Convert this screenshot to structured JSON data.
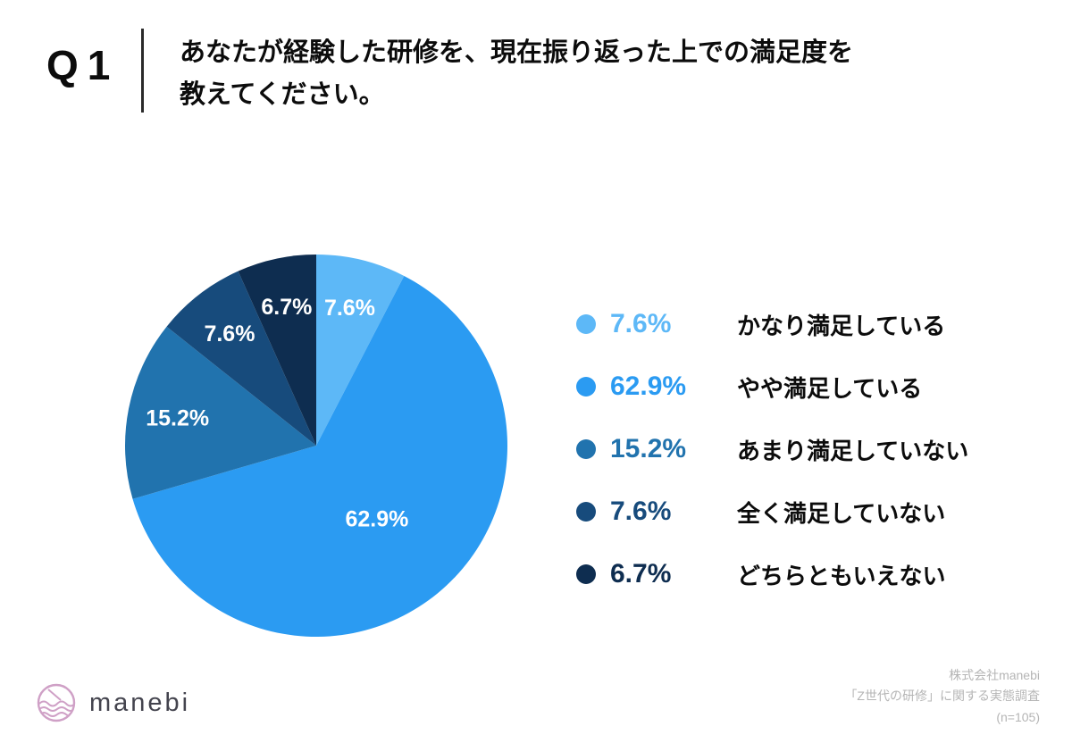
{
  "header": {
    "question_no": "Q1",
    "title_line1": "あなたが経験した研修を、現在振り返った上での満足度を",
    "title_line2": "教えてください。"
  },
  "chart_data": {
    "type": "pie",
    "title": "あなたが経験した研修を、現在振り返った上での満足度を教えてください。",
    "start_angle_deg": 0,
    "direction": "clockwise",
    "legend_position": "right",
    "slices": [
      {
        "label": "かなり満足している",
        "value": 7.6,
        "display": "7.6%",
        "color": "#5db8f7"
      },
      {
        "label": "やや満足している",
        "value": 62.9,
        "display": "62.9%",
        "color": "#2b9bf2"
      },
      {
        "label": "あまり満足していない",
        "value": 15.2,
        "display": "15.2%",
        "color": "#2173ae"
      },
      {
        "label": "全く満足していない",
        "value": 7.6,
        "display": "7.6%",
        "color": "#174b7c"
      },
      {
        "label": "どちらともいえない",
        "value": 6.7,
        "display": "6.7%",
        "color": "#0e2d50"
      }
    ]
  },
  "footer": {
    "logo_text": "manebi",
    "source_line1": "株式会社manebi",
    "source_line2": "「Z世代の研修」に関する実態調査",
    "source_line3": "(n=105)"
  }
}
